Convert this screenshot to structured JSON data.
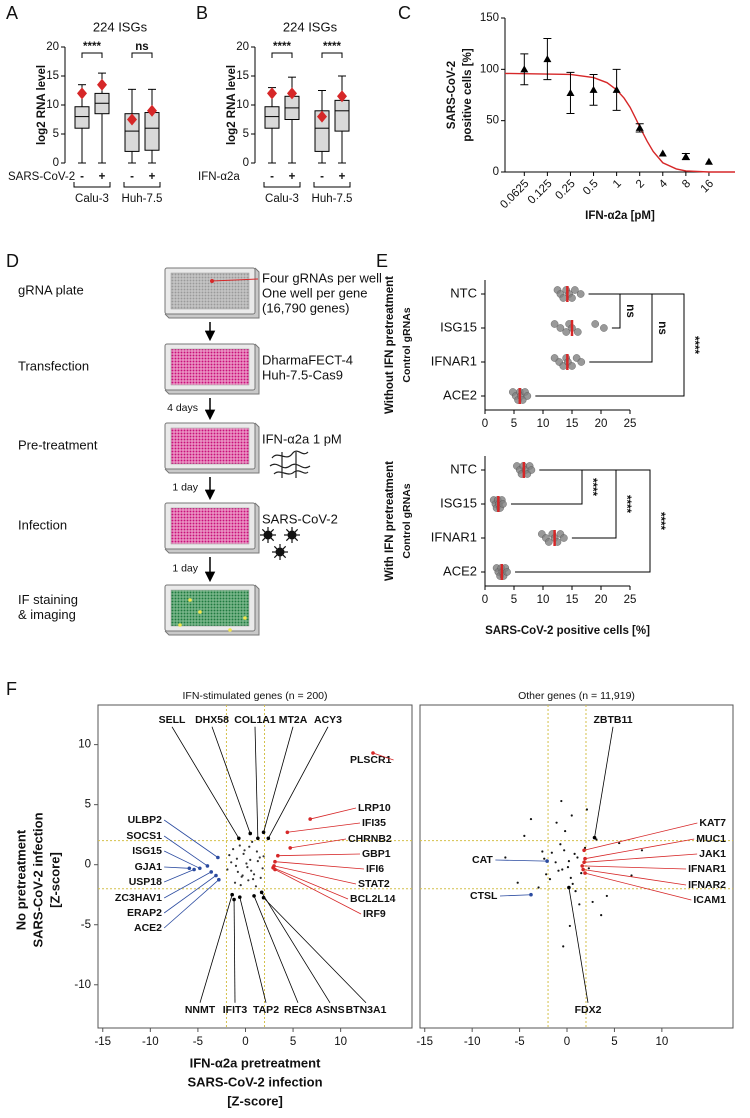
{
  "chart_data": [
    {
      "type": "box",
      "panel": "A",
      "title": "224 ISGs",
      "ylabel": "log2 RNA level",
      "ylim": [
        0,
        20
      ],
      "yticks": [
        0,
        5,
        10,
        15,
        20
      ],
      "categories": [
        "-",
        "+",
        "-",
        "+"
      ],
      "groups": [
        "Calu-3",
        "Huh-7.5"
      ],
      "treatment": "SARS-CoV-2",
      "boxes": [
        [
          0,
          6,
          8,
          9.7,
          13.5
        ],
        [
          0,
          8.5,
          10.3,
          12,
          15.5
        ],
        [
          0,
          2,
          5.5,
          8.5,
          12.7
        ],
        [
          0,
          2.2,
          6,
          8.7,
          12.7
        ]
      ],
      "means": [
        12,
        13.5,
        7.5,
        9
      ],
      "box_color": "#d9d9d9",
      "mean_color": "#d62728",
      "significance": [
        "****",
        "ns"
      ]
    },
    {
      "type": "box",
      "panel": "B",
      "title": "224 ISGs",
      "ylabel": "log2 RNA level",
      "ylim": [
        0,
        20
      ],
      "yticks": [
        0,
        5,
        10,
        15,
        20
      ],
      "categories": [
        "-",
        "+",
        "-",
        "+"
      ],
      "groups": [
        "Calu-3",
        "Huh-7.5"
      ],
      "treatment": "IFN-α2a",
      "boxes": [
        [
          0,
          6,
          8,
          9.7,
          13
        ],
        [
          0,
          7.5,
          9.5,
          11.5,
          14.8
        ],
        [
          0,
          2,
          6,
          9,
          12.5
        ],
        [
          0,
          5.5,
          9,
          10.8,
          15
        ]
      ],
      "means": [
        12,
        12,
        8,
        11.5
      ],
      "box_color": "#d9d9d9",
      "mean_color": "#d62728",
      "significance": [
        "****",
        "****"
      ]
    },
    {
      "type": "dose_response",
      "panel": "C",
      "ylabel": [
        "SARS-CoV-2",
        "positive cells [%]"
      ],
      "xlabel": "IFN-α2a [pM]",
      "log_x": true,
      "xlim": [
        0.035,
        35
      ],
      "xticks": [
        0.0625,
        0.125,
        0.25,
        0.5,
        1,
        2,
        4,
        8,
        16
      ],
      "ylim": [
        0,
        150
      ],
      "yticks": [
        0,
        50,
        100,
        150
      ],
      "x": [
        0.0625,
        0.125,
        0.25,
        0.5,
        1,
        2,
        4,
        8,
        16
      ],
      "values": [
        100,
        110,
        77,
        80,
        80,
        43,
        18,
        15,
        10
      ],
      "errors": [
        15,
        20,
        20,
        15,
        20,
        4,
        null,
        3,
        null
      ],
      "color": "#000000",
      "fit": {
        "color": "#d62728",
        "x": [
          0.035,
          0.25,
          0.5,
          0.75,
          1,
          1.25,
          1.5,
          1.75,
          2,
          2.5,
          3,
          4,
          6,
          8,
          16,
          35
        ],
        "values": [
          96,
          95,
          92,
          87,
          80,
          72,
          63,
          53,
          44,
          30,
          20,
          9,
          3,
          1,
          0,
          0
        ]
      }
    },
    {
      "type": "strip",
      "panel": "E",
      "ylabel": "Without IFN pretreatment",
      "ylabel2": "Control gRNAs",
      "categories": [
        "NTC",
        "ISG15",
        "IFNAR1",
        "ACE2"
      ],
      "values": [
        14.2,
        15,
        14.2,
        6
      ],
      "points": [
        [
          12.5,
          13,
          13.5,
          14,
          14.5,
          15,
          15.5,
          16.5
        ],
        [
          12,
          13,
          14,
          14.5,
          15,
          16,
          19,
          20.5
        ],
        [
          12,
          12.8,
          13.5,
          14,
          14.3,
          15,
          15.8,
          16.6
        ],
        [
          4.8,
          5.3,
          5.7,
          6,
          6.2,
          6.5,
          6.9,
          7.3
        ]
      ],
      "mean_color": "#d62728",
      "point_color": "#808080",
      "xlim": [
        0,
        25
      ],
      "xticks": [
        0,
        5,
        10,
        15,
        20,
        25
      ],
      "significance": [
        "ns",
        "ns",
        "****"
      ]
    },
    {
      "type": "strip",
      "ylabel": "With IFN pretreatment",
      "ylabel2": "Control gRNAs",
      "xlabel": "SARS-CoV-2 positive cells [%]",
      "categories": [
        "NTC",
        "ISG15",
        "IFNAR1",
        "ACE2"
      ],
      "values": [
        6.7,
        2.3,
        12,
        2.9
      ],
      "points": [
        [
          5.5,
          6,
          6.3,
          6.6,
          7,
          7.3,
          7.7,
          8
        ],
        [
          1.5,
          1.8,
          2,
          2.2,
          2.4,
          2.6,
          2.9,
          3.1
        ],
        [
          9.8,
          10.5,
          11,
          11.6,
          12,
          12.5,
          13,
          13.6
        ],
        [
          2,
          2.3,
          2.6,
          2.8,
          3,
          3.2,
          3.5,
          3.8
        ]
      ],
      "mean_color": "#d62728",
      "point_color": "#808080",
      "xlim": [
        0,
        25
      ],
      "xticks": [
        0,
        5,
        10,
        15,
        20,
        25
      ],
      "significance": [
        "****",
        "****",
        "****"
      ]
    },
    {
      "type": "volcano",
      "panel": "F",
      "title": "IFN-stimulated genes (n = 200)",
      "ylabel": [
        "No pretreatment",
        "SARS-CoV-2 infection",
        "[Z-score]"
      ],
      "xlabel": [
        "IFN-α2a pretreatment",
        "SARS-CoV-2 infection",
        "[Z-score]"
      ],
      "xlim": [
        -15.5,
        17.5
      ],
      "xticks": [
        -15,
        -10,
        -5,
        0,
        5,
        10
      ],
      "ylim": [
        -13.6,
        13.3
      ],
      "yticks": [
        -10,
        -5,
        0,
        5,
        10
      ],
      "thresholds": [
        -2,
        2
      ],
      "threshold_color": "#d4c04a",
      "point_color": "#333333",
      "x": [
        0.5,
        -0.8,
        1.2,
        -1.5,
        0.3,
        -0.2,
        1.8,
        -1.1,
        0.9,
        -0.6,
        0.1,
        1.5,
        -1.9,
        0.7,
        -0.4,
        1.1,
        -1.3,
        0.2,
        -0.9,
        1.6,
        -0.1,
        0.6,
        -1.7,
        1.3,
        -0.5,
        0.4,
        -1.0,
        1.9,
        -0.3,
        0.8
      ],
      "values": [
        0.4,
        -0.6,
        1.1,
        0.2,
        -1.3,
        0.9,
        -0.3,
        -1.5,
        -0.8,
        1.6,
        0.1,
        0.6,
        -0.4,
        1.9,
        -1.0,
        -1.8,
        1.3,
        -0.2,
        0.5,
        -1.1,
        1.2,
        -0.5,
        0.8,
        0.3,
        -1.7,
        1.5,
        -0.1,
        0.7,
        -0.9,
        -1.2
      ],
      "labeled": [
        {
          "label": "SELL",
          "x": -0.7,
          "y": 2.2,
          "color": "#000000"
        },
        {
          "label": "DHX58",
          "x": 0.5,
          "y": 2.6,
          "color": "#000000"
        },
        {
          "label": "COL1A1",
          "x": 1.3,
          "y": 2.2,
          "color": "#000000"
        },
        {
          "label": "MT2A",
          "x": 1.9,
          "y": 2.7,
          "color": "#000000"
        },
        {
          "label": "ACY3",
          "x": 2.4,
          "y": 2.2,
          "color": "#000000"
        },
        {
          "label": "PLSCR1",
          "x": 13.4,
          "y": 9.3,
          "color": "#d62728"
        },
        {
          "label": "LRP10",
          "x": 6.8,
          "y": 3.8,
          "color": "#d62728"
        },
        {
          "label": "IFI35",
          "x": 4.4,
          "y": 2.7,
          "color": "#d62728"
        },
        {
          "label": "CHRNB2",
          "x": 4.7,
          "y": 1.4,
          "color": "#d62728"
        },
        {
          "label": "GBP1",
          "x": 3.4,
          "y": 0.75,
          "color": "#d62728"
        },
        {
          "label": "IFI6",
          "x": 3.1,
          "y": 0.25,
          "color": "#d62728"
        },
        {
          "label": "STAT2",
          "x": 3.0,
          "y": -0.1,
          "color": "#d62728"
        },
        {
          "label": "BCL2L14",
          "x": 2.9,
          "y": -0.25,
          "color": "#d62728"
        },
        {
          "label": "IRF9",
          "x": 3.1,
          "y": -0.4,
          "color": "#d62728"
        },
        {
          "label": "ULBP2",
          "x": -2.9,
          "y": 0.6,
          "color": "#2b4ba0"
        },
        {
          "label": "SOCS1",
          "x": -4,
          "y": -0.1,
          "color": "#2b4ba0"
        },
        {
          "label": "ISG15",
          "x": -4.8,
          "y": -0.3,
          "color": "#2b4ba0"
        },
        {
          "label": "GJA1",
          "x": -5.9,
          "y": -0.3,
          "color": "#2b4ba0"
        },
        {
          "label": "USP18",
          "x": -5.4,
          "y": -0.4,
          "color": "#2b4ba0"
        },
        {
          "label": "ZC3HAV1",
          "x": -3.6,
          "y": -0.6,
          "color": "#2b4ba0"
        },
        {
          "label": "ERAP2",
          "x": -3.1,
          "y": -0.9,
          "color": "#2b4ba0"
        },
        {
          "label": "ACE2",
          "x": -2.8,
          "y": -1.25,
          "color": "#2b4ba0"
        },
        {
          "label": "NNMT",
          "x": -1.4,
          "y": -2.5,
          "color": "#000000"
        },
        {
          "label": "IFIT3",
          "x": -1.2,
          "y": -2.9,
          "color": "#000000"
        },
        {
          "label": "TAP2",
          "x": -0.6,
          "y": -2.7,
          "color": "#000000"
        },
        {
          "label": "REC8",
          "x": 0.9,
          "y": -2.6,
          "color": "#000000"
        },
        {
          "label": "ASNS",
          "x": 1.7,
          "y": -2.3,
          "color": "#000000"
        },
        {
          "label": "BTN3A1",
          "x": 1.9,
          "y": -2.75,
          "color": "#000000"
        }
      ]
    },
    {
      "type": "volcano",
      "title": "Other genes (n = 11,919)",
      "xlim": [
        -15.5,
        17.5
      ],
      "xticks": [
        -15,
        -10,
        -5,
        0,
        5,
        10
      ],
      "ylim": [
        -13.6,
        13.3
      ],
      "thresholds": [
        -2,
        2
      ],
      "threshold_color": "#d4c04a",
      "point_color": "#111111",
      "x": [
        0.2,
        -0.5,
        0.8,
        -1.2,
        1.5,
        -0.3,
        0.4,
        -0.9,
        1.1,
        -1.6,
        2.3,
        -2.4,
        0.6,
        -0.7,
        3.1,
        -3.0,
        0.1,
        1.9,
        -1.8,
        4.2,
        -4.5,
        0.9,
        -0.2,
        2.7,
        -2.6,
        5.5,
        -5.2,
        1.3,
        -1.1,
        0.5,
        6.8,
        -6.5,
        3.6,
        -3.8,
        0.3,
        -0.6,
        7.9,
        -0.4,
        2.1,
        -2.2
      ],
      "values": [
        0.3,
        -0.4,
        0.9,
        0.2,
        -0.7,
        1.2,
        -1.1,
        -0.5,
        0.6,
        1.0,
        -0.3,
        0.5,
        -1.6,
        1.7,
        2.1,
        -1.9,
        -0.2,
        1.4,
        -1.2,
        -2.6,
        2.4,
        -2.2,
        2.8,
        -3.1,
        1.1,
        1.8,
        -1.5,
        -3.3,
        3.5,
        4.1,
        -0.9,
        0.6,
        -4.2,
        3.8,
        -5.1,
        5.3,
        1.2,
        -6.8,
        4.6,
        -0.8
      ],
      "labeled": [
        {
          "label": "ZBTB11",
          "x": 2.9,
          "y": 2.25,
          "color": "#000000"
        },
        {
          "label": "KAT7",
          "x": 1.8,
          "y": 1.2,
          "color": "#d62728"
        },
        {
          "label": "MUC1",
          "x": 1.9,
          "y": 0.5,
          "color": "#d62728"
        },
        {
          "label": "JAK1",
          "x": 1.8,
          "y": 0.2,
          "color": "#d62728"
        },
        {
          "label": "IFNAR1",
          "x": 1.6,
          "y": -0.1,
          "color": "#d62728"
        },
        {
          "label": "IFNAR2",
          "x": 1.7,
          "y": -0.4,
          "color": "#d62728"
        },
        {
          "label": "ICAM1",
          "x": 1.9,
          "y": -0.7,
          "color": "#d62728"
        },
        {
          "label": "CAT",
          "x": -2.1,
          "y": 0.3,
          "color": "#2b4ba0"
        },
        {
          "label": "CTSL",
          "x": -3.8,
          "y": -2.5,
          "color": "#2b4ba0"
        },
        {
          "label": "FDX2",
          "x": 0.2,
          "y": -1.9,
          "color": "#000000"
        }
      ]
    }
  ],
  "workflow": {
    "panel": "D",
    "steps": [
      {
        "label": [
          "gRNA plate"
        ],
        "details": [
          "Four gRNAs per well",
          "One well per gene",
          "(16,790 genes)"
        ]
      },
      {
        "label": [
          "Transfection"
        ],
        "details": [
          "DharmaFECT-4",
          "Huh-7.5-Cas9"
        ]
      },
      {
        "label": [
          "Pre-treatment"
        ],
        "details": [
          "IFN-α2a 1 pM"
        ]
      },
      {
        "label": [
          "Infection"
        ],
        "details": [
          "SARS-CoV-2"
        ]
      },
      {
        "label": [
          "IF staining",
          "& imaging"
        ],
        "details": []
      }
    ],
    "intervals": [
      null,
      "4 days",
      "1 day",
      "1 day"
    ]
  }
}
